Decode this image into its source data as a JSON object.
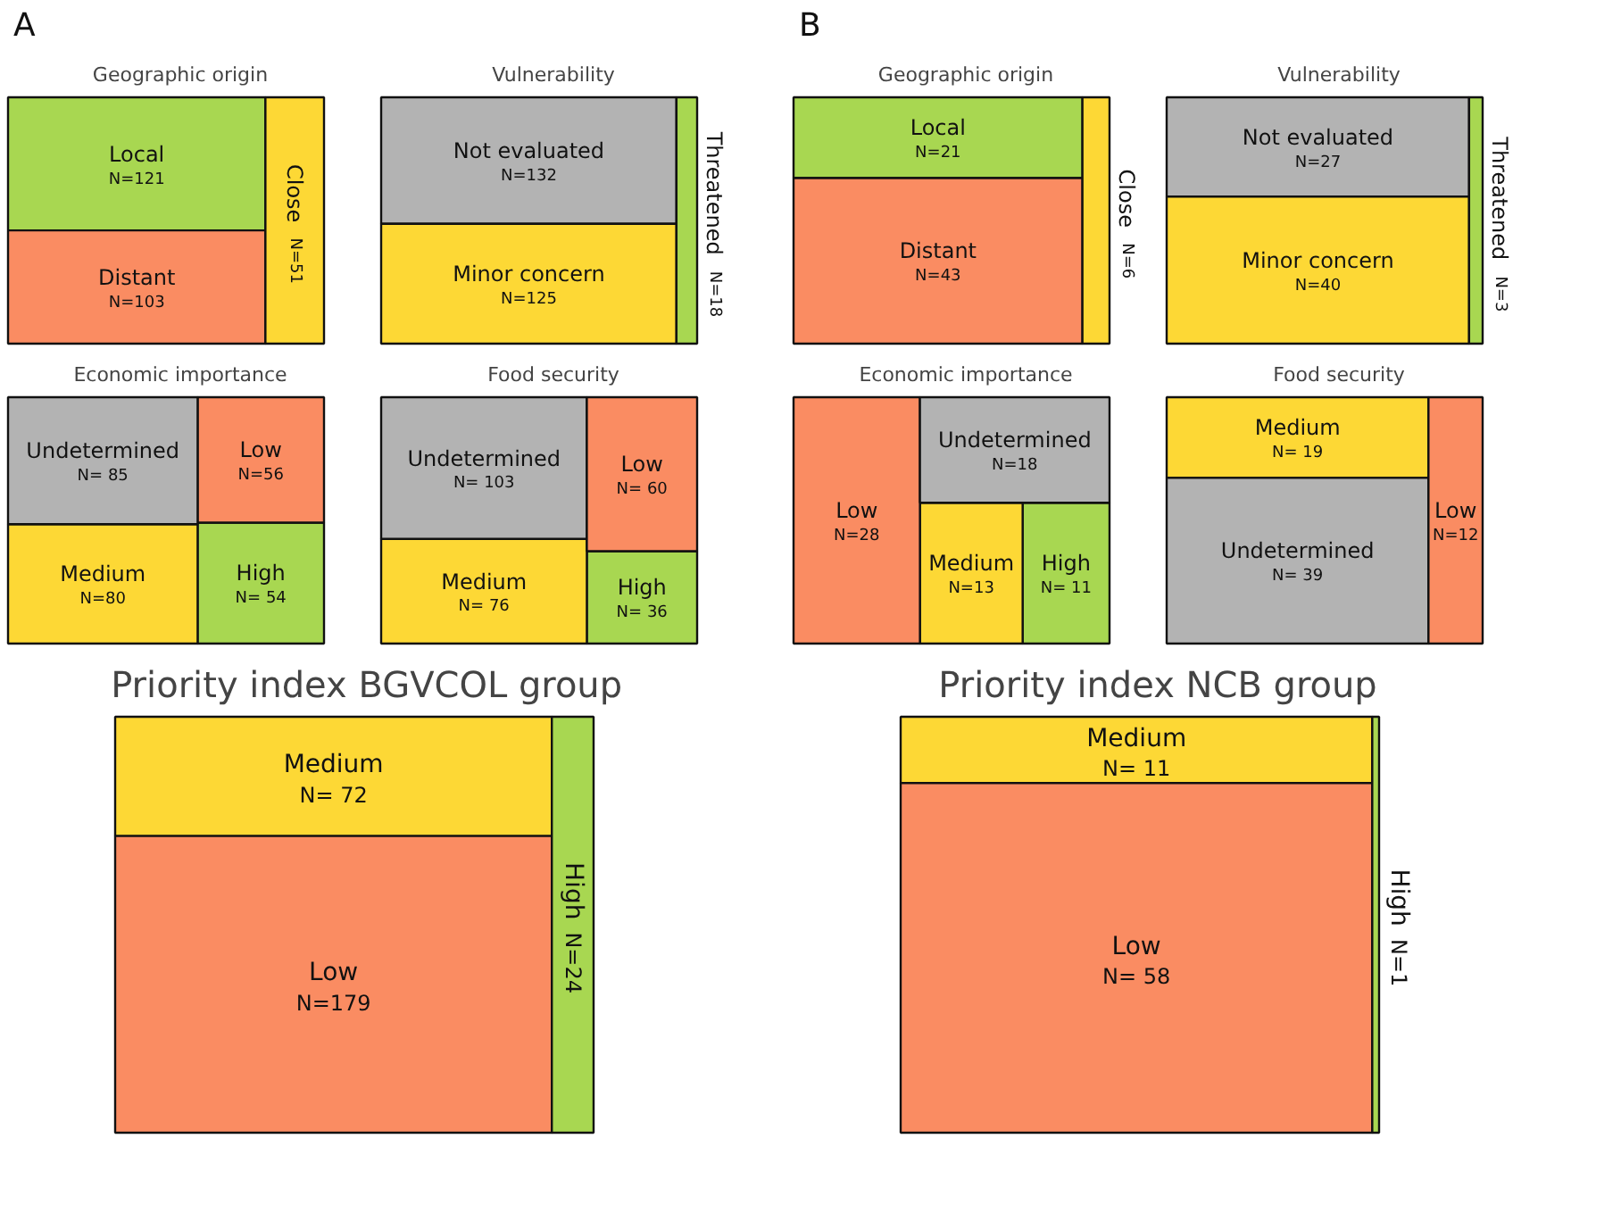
{
  "chart_data": [
    {
      "type": "other",
      "title": "Geographic origin",
      "annotations": [
        "A"
      ],
      "categories": [
        "Local",
        "Distant",
        "Close"
      ],
      "values": [
        121,
        103,
        51
      ],
      "value_labels": [
        "N=121",
        "N=103",
        "N=51"
      ],
      "colors": [
        "#a8d751",
        "#fa8c62",
        "#fdd835"
      ]
    },
    {
      "type": "other",
      "title": "Vulnerability",
      "categories": [
        "Not evaluated",
        "Minor concern",
        "Threatened"
      ],
      "values": [
        132,
        125,
        18
      ],
      "value_labels": [
        "N=132",
        "N=125",
        "N=18"
      ],
      "colors": [
        "#b3b3b3",
        "#fdd835",
        "#a8d751"
      ]
    },
    {
      "type": "other",
      "title": "Economic importance",
      "categories": [
        "High",
        "Medium",
        "Low",
        "Undetermined"
      ],
      "values": [
        54,
        80,
        56,
        85
      ],
      "value_labels": [
        "N= 54",
        "N=80",
        "N=56",
        "N= 85"
      ],
      "colors": [
        "#a8d751",
        "#fdd835",
        "#fa8c62",
        "#b3b3b3"
      ]
    },
    {
      "type": "other",
      "title": "Food security",
      "categories": [
        "High",
        "Medium",
        "Undetermined",
        "Low"
      ],
      "values": [
        36,
        76,
        103,
        60
      ],
      "value_labels": [
        "N= 36",
        "N= 76",
        "N= 103",
        "N= 60"
      ],
      "colors": [
        "#a8d751",
        "#fdd835",
        "#b3b3b3",
        "#fa8c62"
      ]
    },
    {
      "type": "other",
      "title": "Priority index  BGVCOL group",
      "categories": [
        "Medium",
        "Low",
        "High"
      ],
      "values": [
        72,
        179,
        24
      ],
      "value_labels": [
        "N= 72",
        "N=179",
        "N=24"
      ],
      "colors": [
        "#fdd835",
        "#fa8c62",
        "#a8d751"
      ]
    },
    {
      "type": "other",
      "title": "Geographic origin",
      "annotations": [
        "B"
      ],
      "categories": [
        "Local",
        "Distant",
        "Close"
      ],
      "values": [
        21,
        43,
        6
      ],
      "value_labels": [
        "N=21",
        "N=43",
        "N=6"
      ],
      "colors": [
        "#a8d751",
        "#fa8c62",
        "#fdd835"
      ]
    },
    {
      "type": "other",
      "title": "Vulnerability",
      "categories": [
        "Not evaluated",
        "Minor concern",
        "Threatened"
      ],
      "values": [
        27,
        40,
        3
      ],
      "value_labels": [
        "N=27",
        "N=40",
        "N=3"
      ],
      "colors": [
        "#b3b3b3",
        "#fdd835",
        "#a8d751"
      ]
    },
    {
      "type": "other",
      "title": "Economic importance",
      "categories": [
        "High",
        "Medium",
        "Low",
        "Undetermined"
      ],
      "values": [
        11,
        13,
        28,
        18
      ],
      "value_labels": [
        "N= 11",
        "N=13",
        "N=28",
        "N=18"
      ],
      "colors": [
        "#a8d751",
        "#fdd835",
        "#fa8c62",
        "#b3b3b3"
      ]
    },
    {
      "type": "other",
      "title": "Food security",
      "categories": [
        "Medium",
        "Undetermined",
        "Low"
      ],
      "values": [
        19,
        39,
        12
      ],
      "value_labels": [
        "N= 19",
        "N= 39",
        "N=12"
      ],
      "colors": [
        "#fdd835",
        "#b3b3b3",
        "#fa8c62"
      ]
    },
    {
      "type": "other",
      "title": "Priority index NCB group",
      "categories": [
        "Medium",
        "Low",
        "High"
      ],
      "values": [
        11,
        58,
        1
      ],
      "value_labels": [
        "N= 11",
        "N= 58",
        "N=1"
      ],
      "colors": [
        "#fdd835",
        "#fa8c62",
        "#a8d751"
      ]
    }
  ]
}
